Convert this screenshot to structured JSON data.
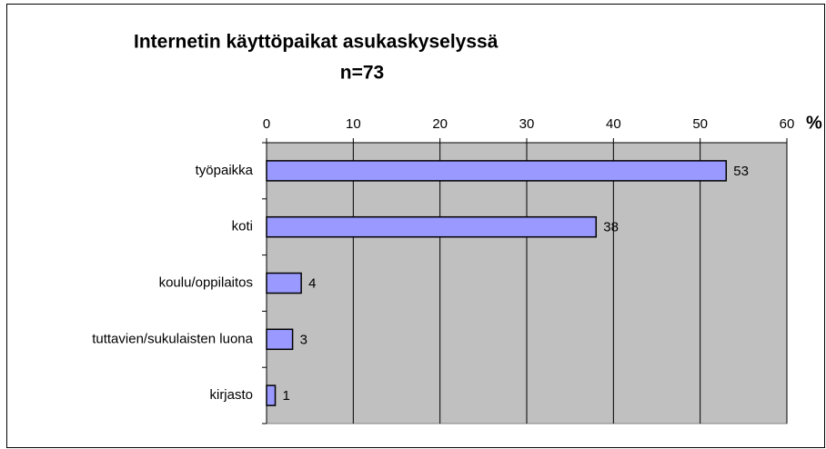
{
  "chart_data": {
    "type": "bar",
    "orientation": "horizontal",
    "title": "Internetin käyttöpaikat asukaskyselyssä",
    "subtitle": "n=73",
    "x_label": "%",
    "categories": [
      "työpaikka",
      "koti",
      "koulu/oppilaitos",
      "tuttavien/sukulaisten luona",
      "kirjasto"
    ],
    "values": [
      53,
      38,
      4,
      3,
      1
    ],
    "color": "#9999ff",
    "xlim": [
      0,
      60
    ],
    "xticks": [
      0,
      10,
      20,
      30,
      40,
      50,
      60
    ],
    "grid": true,
    "plot_background": "#c0c0c0"
  }
}
